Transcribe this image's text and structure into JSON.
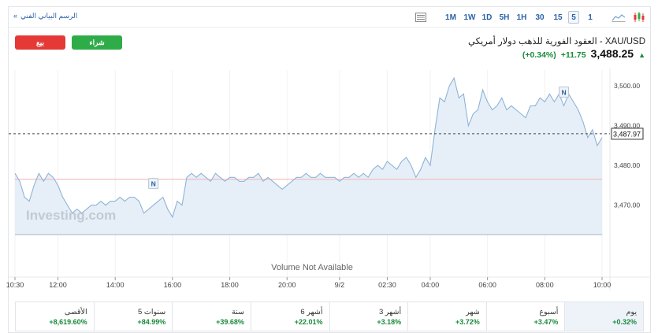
{
  "toolbar": {
    "timeframes": [
      "1M",
      "1W",
      "1D",
      "5H",
      "1H",
      "30",
      "15",
      "5",
      "1"
    ],
    "active_timeframe": "5",
    "technical_link": "الرسم البياني الفني",
    "technical_link_arrow": "»",
    "icons": [
      "candlestick-icon",
      "area-chart-icon",
      "table-icon"
    ]
  },
  "buttons": {
    "sell": "بيع",
    "buy": "شراء"
  },
  "instrument": {
    "title": "XAU/USD - العقود الفورية للذهب دولار أمريكي",
    "last": "3,488.25",
    "change": "+11.75",
    "change_pct": "(+0.34%)",
    "direction": "up"
  },
  "colors": {
    "accent": "#2a62a8",
    "up": "#1a8a3c",
    "sell": "#e53935",
    "buy": "#2eac48",
    "line": "#8fb3d6",
    "area": "#e6eff8",
    "prev_close_line": "#f3b0b0"
  },
  "chart_data": {
    "type": "area",
    "ylim": [
      3462,
      3504
    ],
    "yticks": [
      "3,500.00",
      "3,490.00",
      "3,480.00",
      "3,470.00"
    ],
    "ytick_values": [
      3500,
      3490,
      3480,
      3470
    ],
    "xticks": [
      "10:30",
      "12:00",
      "14:00",
      "16:00",
      "18:00",
      "20:00",
      "9/2",
      "02:30",
      "04:00",
      "06:00",
      "08:00",
      "10:00"
    ],
    "xtick_index": [
      0,
      9,
      21,
      33,
      45,
      57,
      68,
      78,
      87,
      99,
      111,
      123
    ],
    "current_price_label": "3,487.97",
    "current_price": 3487.97,
    "reference_level": 3476.5,
    "volume_note": "Volume Not Available",
    "watermark": "Investing.com",
    "news_marker": "N",
    "news_index": [
      29,
      115
    ],
    "values": [
      3478,
      3476,
      3472,
      3471,
      3475,
      3478,
      3476,
      3478,
      3477,
      3475,
      3472,
      3470,
      3468,
      3469,
      3468,
      3469,
      3470,
      3470,
      3471,
      3470,
      3471,
      3471,
      3472,
      3471,
      3472,
      3472,
      3471,
      3468,
      3469,
      3470,
      3471,
      3472,
      3469,
      3467,
      3471,
      3470,
      3477,
      3478,
      3477,
      3478,
      3477,
      3476,
      3478,
      3477,
      3476,
      3477,
      3477,
      3476,
      3476,
      3477,
      3477,
      3478,
      3476,
      3477,
      3476,
      3475,
      3474,
      3475,
      3476,
      3477,
      3477,
      3478,
      3477,
      3477,
      3478,
      3477,
      3477,
      3477,
      3476,
      3477,
      3477,
      3478,
      3477,
      3478,
      3477,
      3479,
      3480,
      3479,
      3481,
      3480,
      3479,
      3481,
      3482,
      3480,
      3477,
      3479,
      3482,
      3480,
      3489,
      3497,
      3496,
      3500,
      3502,
      3497,
      3498,
      3490,
      3493,
      3494,
      3499,
      3496,
      3494,
      3495,
      3497,
      3494,
      3495,
      3494,
      3493,
      3492,
      3495,
      3495,
      3497,
      3496,
      3498,
      3496,
      3498,
      3495,
      3498,
      3496,
      3494,
      3491,
      3487,
      3489,
      3485,
      3487
    ]
  },
  "performance": [
    {
      "label": "يوم",
      "value": "+0.32%",
      "selected": true
    },
    {
      "label": "أسبوع",
      "value": "+3.47%",
      "selected": false
    },
    {
      "label": "شهر",
      "value": "+3.72%",
      "selected": false
    },
    {
      "label": "3 أشهر",
      "value": "+3.18%",
      "selected": false
    },
    {
      "label": "6 أشهر",
      "value": "+22.01%",
      "selected": false
    },
    {
      "label": "سنة",
      "value": "+39.68%",
      "selected": false
    },
    {
      "label": "5 سنوات",
      "value": "+84.99%",
      "selected": false
    },
    {
      "label": "الأقصى",
      "value": "+8,619.60%",
      "selected": false
    }
  ]
}
